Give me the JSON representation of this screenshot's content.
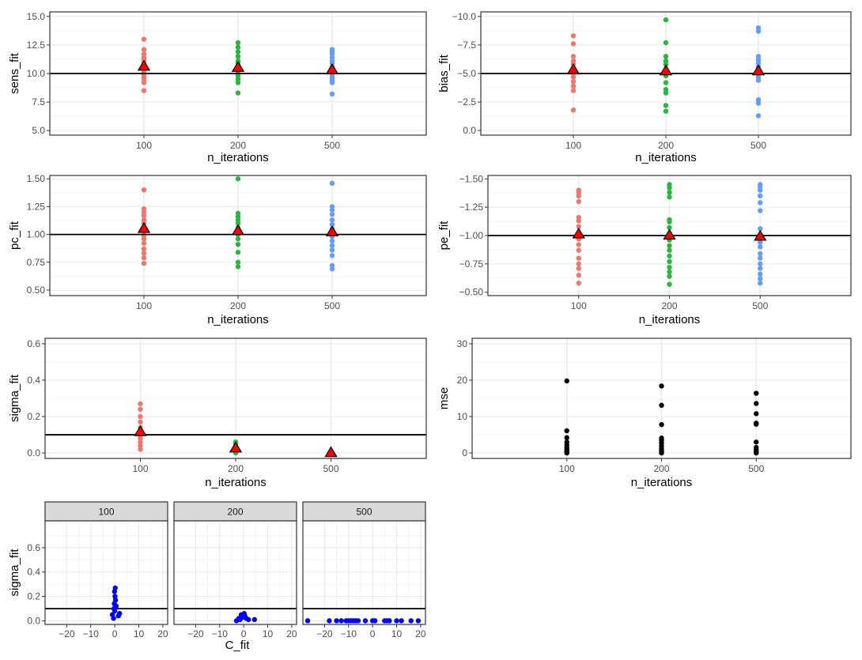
{
  "colors": {
    "n100": "#F0766D",
    "n200": "#22BA38",
    "n500": "#619CFF",
    "mean_marker": "#FF0000",
    "reference": "#000000",
    "facet_points": "#0000FF",
    "mse_points": "#000000"
  },
  "chart_data": [
    {
      "id": "sens",
      "type": "scatter",
      "xlabel": "n_iterations",
      "ylabel": "sens_fit",
      "categories": [
        "100",
        "200",
        "500"
      ],
      "ylim": [
        4.6,
        15.4
      ],
      "yreverse": false,
      "yticks": [
        5.0,
        7.5,
        10.0,
        12.5,
        15.0
      ],
      "ytick_labels": [
        "5.0",
        "7.5",
        "10.0",
        "12.5",
        "15.0"
      ],
      "hline": 10,
      "series": [
        {
          "name": "100",
          "values": [
            8.5,
            9.2,
            9.5,
            9.7,
            9.9,
            10.1,
            10.4,
            10.7,
            11.0,
            11.2,
            11.4,
            11.7,
            12.1,
            13.0
          ],
          "mean": 10.6
        },
        {
          "name": "200",
          "values": [
            8.3,
            9.2,
            9.5,
            9.8,
            10.0,
            10.3,
            10.6,
            10.9,
            11.1,
            11.5,
            11.9,
            12.3,
            12.7
          ],
          "mean": 10.5
        },
        {
          "name": "500",
          "values": [
            8.2,
            9.2,
            9.4,
            9.6,
            9.8,
            10.0,
            10.3,
            10.6,
            10.9,
            11.1,
            11.4,
            11.7,
            11.9,
            12.1
          ],
          "mean": 10.3
        }
      ]
    },
    {
      "id": "bias",
      "type": "scatter",
      "xlabel": "n_iterations",
      "ylabel": "bias_fit",
      "categories": [
        "100",
        "200",
        "500"
      ],
      "ylim": [
        0.4,
        -10.4
      ],
      "yreverse": true,
      "yticks": [
        0.0,
        -2.5,
        -5.0,
        -7.5,
        -10.0
      ],
      "ytick_labels": [
        "0.0",
        "−2.5",
        "−5.0",
        "−7.5",
        "−10.0"
      ],
      "hline": -5,
      "series": [
        {
          "name": "100",
          "values": [
            -1.8,
            -3.5,
            -3.9,
            -4.3,
            -4.7,
            -5.0,
            -5.4,
            -5.8,
            -6.1,
            -6.5,
            -7.6,
            -8.3
          ],
          "mean": -5.3
        },
        {
          "name": "200",
          "values": [
            -1.7,
            -2.2,
            -3.3,
            -3.6,
            -4.2,
            -4.8,
            -5.2,
            -5.8,
            -6.1,
            -6.5,
            -7.7,
            -9.7
          ],
          "mean": -5.2
        },
        {
          "name": "500",
          "values": [
            -1.3,
            -2.4,
            -2.7,
            -4.4,
            -4.7,
            -5.0,
            -5.3,
            -5.6,
            -5.9,
            -6.2,
            -6.5,
            -8.7,
            -9.0
          ],
          "mean": -5.2
        }
      ]
    },
    {
      "id": "pc",
      "type": "scatter",
      "xlabel": "n_iterations",
      "ylabel": "pc_fit",
      "categories": [
        "100",
        "200",
        "500"
      ],
      "ylim": [
        0.45,
        1.53
      ],
      "yreverse": false,
      "yticks": [
        0.5,
        0.75,
        1.0,
        1.25,
        1.5
      ],
      "ytick_labels": [
        "0.50",
        "0.75",
        "1.00",
        "1.25",
        "1.50"
      ],
      "hline": 1.0,
      "series": [
        {
          "name": "100",
          "values": [
            0.74,
            0.79,
            0.83,
            0.87,
            0.92,
            0.96,
            0.99,
            1.03,
            1.07,
            1.1,
            1.13,
            1.17,
            1.2,
            1.23,
            1.4
          ],
          "mean": 1.05
        },
        {
          "name": "200",
          "values": [
            0.71,
            0.75,
            0.84,
            0.91,
            0.96,
            1.0,
            1.03,
            1.06,
            1.1,
            1.13,
            1.16,
            1.19,
            1.5
          ],
          "mean": 1.03
        },
        {
          "name": "500",
          "values": [
            0.69,
            0.72,
            0.81,
            0.86,
            0.9,
            0.94,
            0.98,
            1.01,
            1.05,
            1.09,
            1.13,
            1.18,
            1.22,
            1.25,
            1.46
          ],
          "mean": 1.02
        }
      ]
    },
    {
      "id": "pe",
      "type": "scatter",
      "xlabel": "n_iterations",
      "ylabel": "pe_fit",
      "categories": [
        "100",
        "200",
        "500"
      ],
      "ylim": [
        -0.47,
        -1.53
      ],
      "yreverse": true,
      "yticks": [
        -0.5,
        -0.75,
        -1.0,
        -1.25,
        -1.5
      ],
      "ytick_labels": [
        "−0.50",
        "−0.75",
        "−1.00",
        "−1.25",
        "−1.50"
      ],
      "hline": -1.0,
      "series": [
        {
          "name": "100",
          "values": [
            -0.58,
            -0.65,
            -0.71,
            -0.75,
            -0.8,
            -0.87,
            -0.92,
            -0.97,
            -1.02,
            -1.08,
            -1.13,
            -1.16,
            -1.3,
            -1.35,
            -1.38,
            -1.4
          ],
          "mean": -1.01
        },
        {
          "name": "200",
          "values": [
            -0.57,
            -0.64,
            -0.68,
            -0.72,
            -0.77,
            -0.82,
            -0.87,
            -0.91,
            -0.96,
            -1.02,
            -1.07,
            -1.12,
            -1.14,
            -1.34,
            -1.38,
            -1.42,
            -1.45
          ],
          "mean": -1.0
        },
        {
          "name": "500",
          "values": [
            -0.58,
            -0.62,
            -0.66,
            -0.71,
            -0.75,
            -0.8,
            -0.84,
            -0.9,
            -0.94,
            -0.98,
            -1.06,
            -1.22,
            -1.29,
            -1.35,
            -1.4,
            -1.43,
            -1.45
          ],
          "mean": -0.99
        }
      ]
    },
    {
      "id": "sigma",
      "type": "scatter",
      "xlabel": "n_iterations",
      "ylabel": "sigma_fit",
      "categories": [
        "100",
        "200",
        "500"
      ],
      "ylim": [
        -0.03,
        0.63
      ],
      "yreverse": false,
      "yticks": [
        0.0,
        0.2,
        0.4,
        0.6
      ],
      "ytick_labels": [
        "0.0",
        "0.2",
        "0.4",
        "0.6"
      ],
      "hline": 0.1,
      "series": [
        {
          "name": "100",
          "values": [
            0.02,
            0.04,
            0.06,
            0.08,
            0.1,
            0.12,
            0.14,
            0.17,
            0.2,
            0.24,
            0.27
          ],
          "mean": 0.115
        },
        {
          "name": "200",
          "values": [
            0.0,
            0.01,
            0.02,
            0.03,
            0.04,
            0.05,
            0.06
          ],
          "mean": 0.025
        },
        {
          "name": "500",
          "values": [
            0.0,
            0.0,
            0.0
          ],
          "mean": 0.0
        }
      ]
    },
    {
      "id": "mse",
      "type": "scatter",
      "xlabel": "n_iterations",
      "ylabel": "mse",
      "categories": [
        "100",
        "200",
        "500"
      ],
      "ylim": [
        -1.5,
        31.5
      ],
      "yreverse": false,
      "yticks": [
        0,
        10,
        20,
        30
      ],
      "ytick_labels": [
        "0",
        "10",
        "20",
        "30"
      ],
      "hline": null,
      "series": [
        {
          "name": "100",
          "values": [
            0.0,
            0.3,
            0.6,
            1.0,
            1.5,
            2.2,
            3.0,
            4.2,
            6.1,
            19.8
          ]
        },
        {
          "name": "200",
          "values": [
            0.0,
            0.4,
            0.8,
            1.3,
            2.0,
            2.8,
            3.5,
            4.1,
            7.8,
            13.1,
            18.4
          ]
        },
        {
          "name": "500",
          "values": [
            0.0,
            0.4,
            0.9,
            1.5,
            3.0,
            7.9,
            8.2,
            10.8,
            13.6,
            16.4
          ]
        }
      ]
    },
    {
      "id": "facet",
      "type": "scatter",
      "xlabel": "C_fit",
      "ylabel": "sigma_fit",
      "xlim": [
        -29,
        22
      ],
      "xticks": [
        -20,
        -10,
        0,
        10,
        20
      ],
      "xtick_labels": [
        "−20",
        "−10",
        "0",
        "10",
        "20"
      ],
      "ylim": [
        -0.03,
        0.82
      ],
      "yticks": [
        0.0,
        0.2,
        0.4,
        0.6
      ],
      "ytick_labels": [
        "0.0",
        "0.2",
        "0.4",
        "0.6"
      ],
      "hline": 0.1,
      "panels": [
        {
          "label": "100",
          "points": [
            [
              -0.5,
              0.02
            ],
            [
              1.5,
              0.04
            ],
            [
              -1,
              0.05
            ],
            [
              2,
              0.06
            ],
            [
              0,
              0.08
            ],
            [
              -0.3,
              0.1
            ],
            [
              0.6,
              0.12
            ],
            [
              -0.2,
              0.14
            ],
            [
              0.3,
              0.17
            ],
            [
              0.1,
              0.2
            ],
            [
              -0.1,
              0.24
            ],
            [
              0.2,
              0.27
            ]
          ]
        },
        {
          "label": "200",
          "points": [
            [
              -3,
              0.0
            ],
            [
              -1.5,
              0.01
            ],
            [
              4.5,
              0.01
            ],
            [
              -2,
              0.02
            ],
            [
              1,
              0.02
            ],
            [
              -0.5,
              0.03
            ],
            [
              0.5,
              0.04
            ],
            [
              -1,
              0.05
            ],
            [
              0.2,
              0.06
            ],
            [
              2,
              0.01
            ]
          ]
        },
        {
          "label": "500",
          "points": [
            [
              -27,
              0.0
            ],
            [
              -18,
              0.0
            ],
            [
              -15,
              0.0
            ],
            [
              -13,
              0.0
            ],
            [
              -11,
              0.0
            ],
            [
              -10,
              0.0
            ],
            [
              -9,
              0.0
            ],
            [
              -8,
              0.0
            ],
            [
              -7,
              0.0
            ],
            [
              -6,
              0.0
            ],
            [
              -3,
              0.0
            ],
            [
              0,
              0.0
            ],
            [
              1,
              0.0
            ],
            [
              5,
              0.0
            ],
            [
              6,
              0.0
            ],
            [
              7,
              0.0
            ],
            [
              10,
              0.0
            ],
            [
              12,
              0.0
            ],
            [
              16,
              0.0
            ],
            [
              19,
              0.0
            ]
          ]
        }
      ]
    }
  ]
}
